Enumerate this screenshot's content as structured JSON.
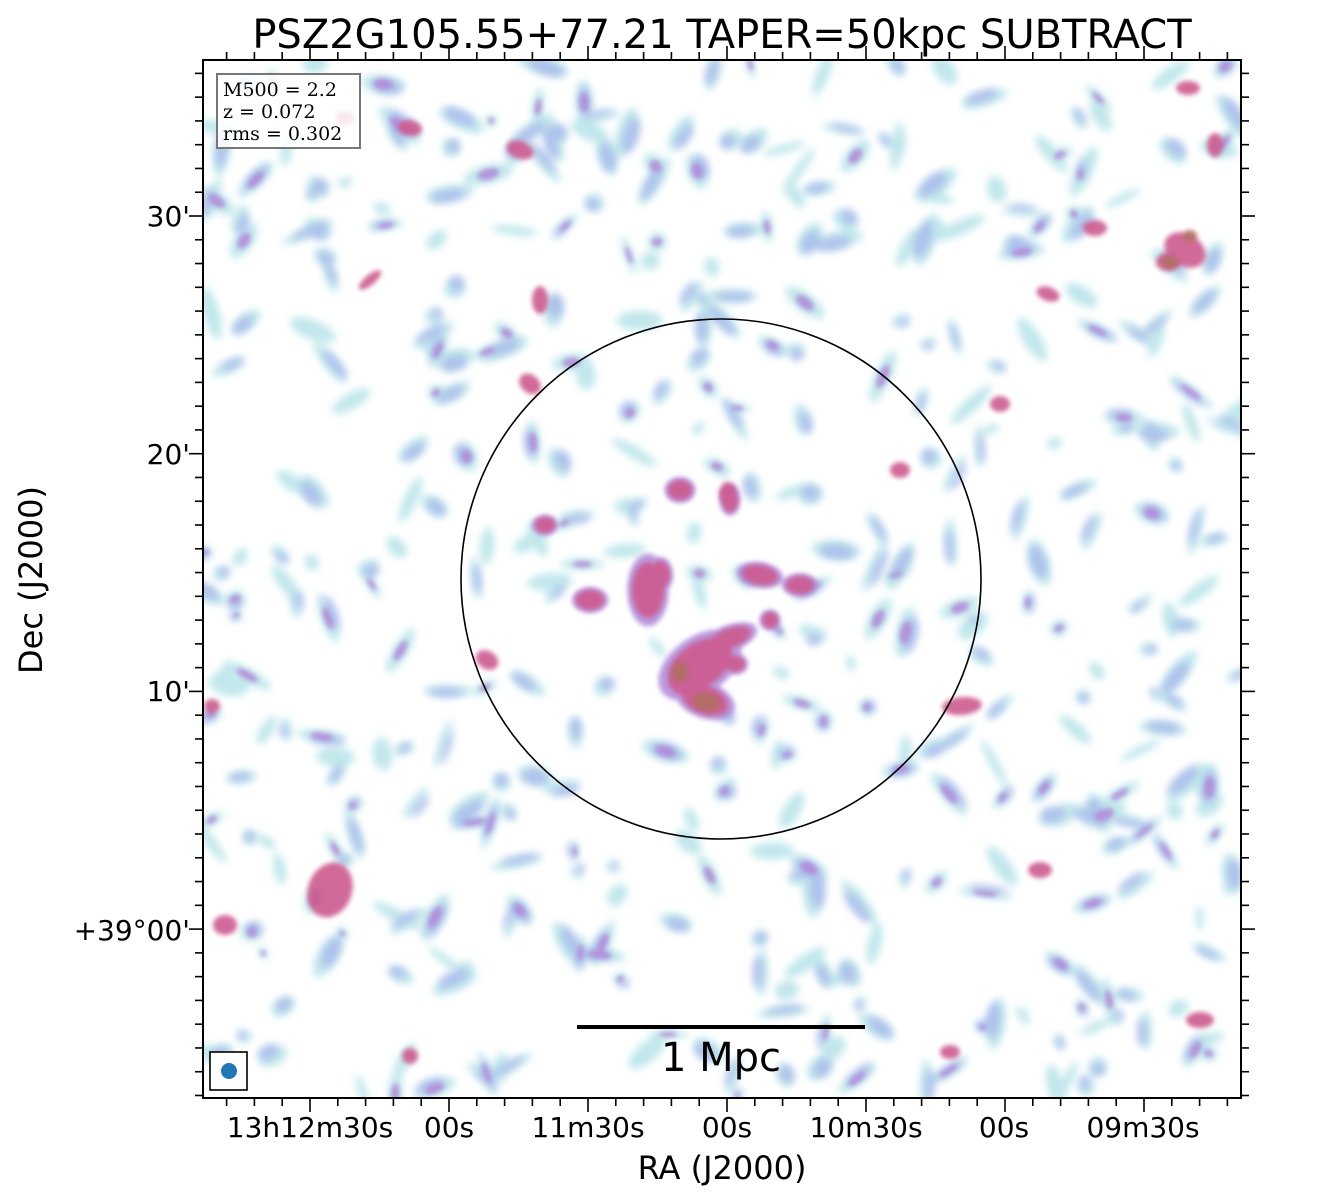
{
  "figure": {
    "title": "PSZ2G105.55+77.21 TAPER=50kpc SUBTRACT",
    "xlabel": "RA (J2000)",
    "ylabel": "Dec (J2000)"
  },
  "info_box": {
    "lines": [
      "M500 = 2.2",
      "z = 0.072",
      "rms = 0.302"
    ]
  },
  "x_ticks": [
    "13h12m30s",
    "00s",
    "11m30s",
    "00s",
    "10m30s",
    "00s",
    "09m30s"
  ],
  "y_ticks": [
    "30'",
    "20'",
    "10'",
    "+39°00'"
  ],
  "scalebar": {
    "label": "1 Mpc"
  },
  "colors": {
    "faint": "#b6e3e8",
    "low": "#a9b8ec",
    "mid": "#b088d8",
    "high": "#cc5a8e",
    "peak": "#b07060",
    "beam": "#1f77b4"
  },
  "image": {
    "type": "radio continuum residual map",
    "circle": "black circle around cluster center",
    "beam": "restoring beam marker bottom-left"
  }
}
